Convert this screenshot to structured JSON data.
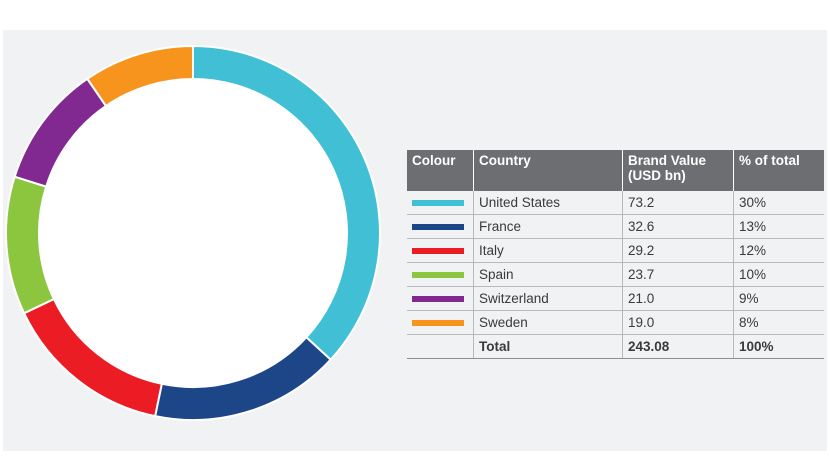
{
  "chart_data": {
    "type": "pie",
    "headers": {
      "colour": "Colour",
      "country": "Country",
      "value": "Brand Value (USD bn)",
      "percent": "% of total"
    },
    "rows": [
      {
        "country": "United States",
        "value": "73.2",
        "percent": "30%",
        "color": "#40bfd5"
      },
      {
        "country": "France",
        "value": "32.6",
        "percent": "13%",
        "color": "#1d4689"
      },
      {
        "country": "Italy",
        "value": "29.2",
        "percent": "12%",
        "color": "#ec1c24"
      },
      {
        "country": "Spain",
        "value": "23.7",
        "percent": "10%",
        "color": "#8cc63f"
      },
      {
        "country": "Switzerland",
        "value": "21.0",
        "percent": "9%",
        "color": "#812990"
      },
      {
        "country": "Sweden",
        "value": "19.0",
        "percent": "8%",
        "color": "#f7941d"
      }
    ],
    "total": {
      "label": "Total",
      "value": "243.08",
      "percent": "100%"
    }
  }
}
